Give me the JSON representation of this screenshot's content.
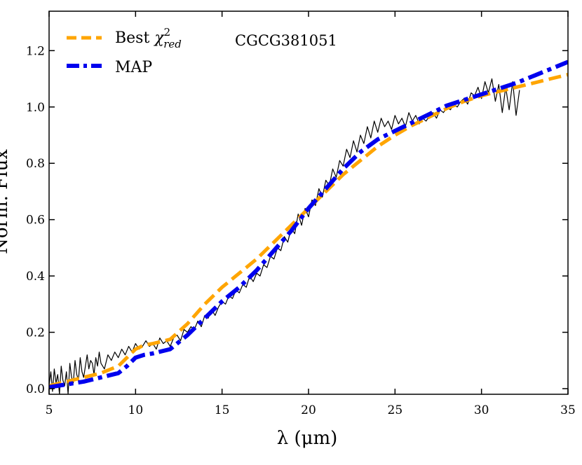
{
  "chart_data": {
    "type": "line",
    "xlabel": "λ (μm)",
    "ylabel": "Norm. Flux",
    "xlim": [
      5,
      35
    ],
    "ylim": [
      -0.02,
      1.34
    ],
    "xticks": [
      5,
      10,
      15,
      20,
      25,
      30,
      35
    ],
    "yticks": [
      0.0,
      0.2,
      0.4,
      0.6,
      0.8,
      1.0,
      1.2
    ],
    "annotation": "CGCG381051",
    "legend_position": "top-left",
    "legend": [
      {
        "text": "Best χ²red",
        "display": "Best ",
        "chi": "χ",
        "sup": "2",
        "sub": "red",
        "color": "#FFA500",
        "style": "dashed"
      },
      {
        "text": "MAP",
        "display": "MAP",
        "color": "#0000EE",
        "style": "dashdot"
      }
    ],
    "series": [
      {
        "name": "Best χ²red",
        "color": "#FFA500",
        "style": "dashed",
        "x": [
          5.0,
          6.0,
          7.0,
          8.0,
          9.0,
          9.5,
          10.0,
          10.5,
          11.0,
          12.0,
          13.0,
          14.0,
          15.0,
          16.0,
          17.0,
          18.0,
          19.0,
          20.0,
          21.0,
          22.0,
          23.0,
          24.0,
          25.0,
          26.0,
          27.0,
          28.0,
          29.0,
          30.0,
          31.0,
          32.0,
          33.0,
          34.0,
          35.0
        ],
        "y": [
          0.01,
          0.025,
          0.04,
          0.055,
          0.08,
          0.11,
          0.14,
          0.155,
          0.16,
          0.175,
          0.23,
          0.3,
          0.36,
          0.41,
          0.46,
          0.52,
          0.58,
          0.64,
          0.7,
          0.76,
          0.81,
          0.86,
          0.9,
          0.935,
          0.965,
          0.995,
          1.02,
          1.04,
          1.055,
          1.07,
          1.085,
          1.1,
          1.115
        ]
      },
      {
        "name": "MAP",
        "color": "#0000EE",
        "style": "dashdot",
        "x": [
          5.0,
          6.0,
          7.0,
          8.0,
          9.0,
          9.5,
          10.0,
          10.5,
          11.0,
          12.0,
          13.0,
          14.0,
          15.0,
          16.0,
          17.0,
          18.0,
          19.0,
          20.0,
          21.0,
          22.0,
          23.0,
          24.0,
          25.0,
          26.0,
          27.0,
          28.0,
          29.0,
          30.0,
          31.0,
          32.0,
          33.0,
          34.0,
          35.0
        ],
        "y": [
          0.005,
          0.015,
          0.025,
          0.04,
          0.055,
          0.08,
          0.11,
          0.12,
          0.125,
          0.14,
          0.19,
          0.25,
          0.31,
          0.36,
          0.42,
          0.49,
          0.56,
          0.64,
          0.71,
          0.78,
          0.84,
          0.885,
          0.915,
          0.945,
          0.975,
          1.005,
          1.025,
          1.045,
          1.065,
          1.085,
          1.11,
          1.135,
          1.16
        ]
      },
      {
        "name": "",
        "color": "#000000",
        "style": "solid",
        "x": [
          5.0,
          5.1,
          5.2,
          5.3,
          5.4,
          5.5,
          5.6,
          5.7,
          5.8,
          5.9,
          6.0,
          6.1,
          6.2,
          6.3,
          6.4,
          6.5,
          6.6,
          6.7,
          6.8,
          6.9,
          7.0,
          7.1,
          7.2,
          7.3,
          7.4,
          7.5,
          7.6,
          7.7,
          7.8,
          7.9,
          8.0,
          8.2,
          8.4,
          8.6,
          8.8,
          9.0,
          9.2,
          9.4,
          9.6,
          9.8,
          10.0,
          10.2,
          10.4,
          10.6,
          10.8,
          11.0,
          11.2,
          11.4,
          11.6,
          11.8,
          12.0,
          12.2,
          12.4,
          12.6,
          12.8,
          13.0,
          13.2,
          13.4,
          13.6,
          13.8,
          14.0,
          14.2,
          14.4,
          14.6,
          14.8,
          15.0,
          15.2,
          15.4,
          15.6,
          15.8,
          16.0,
          16.2,
          16.4,
          16.6,
          16.8,
          17.0,
          17.2,
          17.4,
          17.6,
          17.8,
          18.0,
          18.2,
          18.4,
          18.6,
          18.8,
          19.0,
          19.2,
          19.4,
          19.6,
          19.8,
          20.0,
          20.2,
          20.4,
          20.6,
          20.8,
          21.0,
          21.2,
          21.4,
          21.6,
          21.8,
          22.0,
          22.2,
          22.4,
          22.6,
          22.8,
          23.0,
          23.2,
          23.4,
          23.6,
          23.8,
          24.0,
          24.2,
          24.4,
          24.6,
          24.8,
          25.0,
          25.2,
          25.4,
          25.6,
          25.8,
          26.0,
          26.2,
          26.4,
          26.6,
          26.8,
          27.0,
          27.2,
          27.4,
          27.6,
          27.8,
          28.0,
          28.2,
          28.4,
          28.6,
          28.8,
          29.0,
          29.2,
          29.4,
          29.6,
          29.8,
          30.0,
          30.2,
          30.4,
          30.6,
          30.8,
          31.0,
          31.2,
          31.4,
          31.6,
          31.8,
          32.0,
          32.2
        ],
        "y": [
          0.01,
          0.06,
          -0.01,
          0.07,
          0.02,
          0.05,
          -0.02,
          0.08,
          0.03,
          0.01,
          0.06,
          -0.02,
          0.09,
          0.04,
          0.02,
          0.1,
          0.05,
          0.03,
          0.11,
          0.06,
          0.04,
          0.08,
          0.12,
          0.07,
          0.1,
          0.09,
          0.05,
          0.11,
          0.08,
          0.13,
          0.09,
          0.07,
          0.12,
          0.1,
          0.13,
          0.11,
          0.14,
          0.12,
          0.15,
          0.13,
          0.16,
          0.14,
          0.15,
          0.17,
          0.15,
          0.16,
          0.14,
          0.18,
          0.16,
          0.17,
          0.15,
          0.18,
          0.19,
          0.17,
          0.21,
          0.2,
          0.22,
          0.21,
          0.24,
          0.22,
          0.26,
          0.25,
          0.28,
          0.26,
          0.29,
          0.31,
          0.3,
          0.33,
          0.32,
          0.35,
          0.34,
          0.37,
          0.36,
          0.4,
          0.38,
          0.41,
          0.4,
          0.44,
          0.43,
          0.47,
          0.46,
          0.5,
          0.49,
          0.54,
          0.52,
          0.57,
          0.55,
          0.62,
          0.58,
          0.64,
          0.61,
          0.67,
          0.65,
          0.71,
          0.68,
          0.74,
          0.72,
          0.78,
          0.75,
          0.81,
          0.79,
          0.85,
          0.82,
          0.88,
          0.84,
          0.9,
          0.87,
          0.93,
          0.89,
          0.95,
          0.91,
          0.96,
          0.93,
          0.95,
          0.92,
          0.97,
          0.94,
          0.96,
          0.93,
          0.98,
          0.95,
          0.97,
          0.94,
          0.96,
          0.95,
          0.97,
          0.98,
          0.96,
          0.99,
          0.98,
          1.0,
          0.99,
          1.01,
          1.0,
          1.02,
          1.03,
          1.01,
          1.05,
          1.04,
          1.07,
          1.03,
          1.09,
          1.05,
          1.1,
          1.02,
          1.08,
          0.98,
          1.07,
          0.99,
          1.09,
          0.97,
          1.06
        ]
      }
    ]
  }
}
